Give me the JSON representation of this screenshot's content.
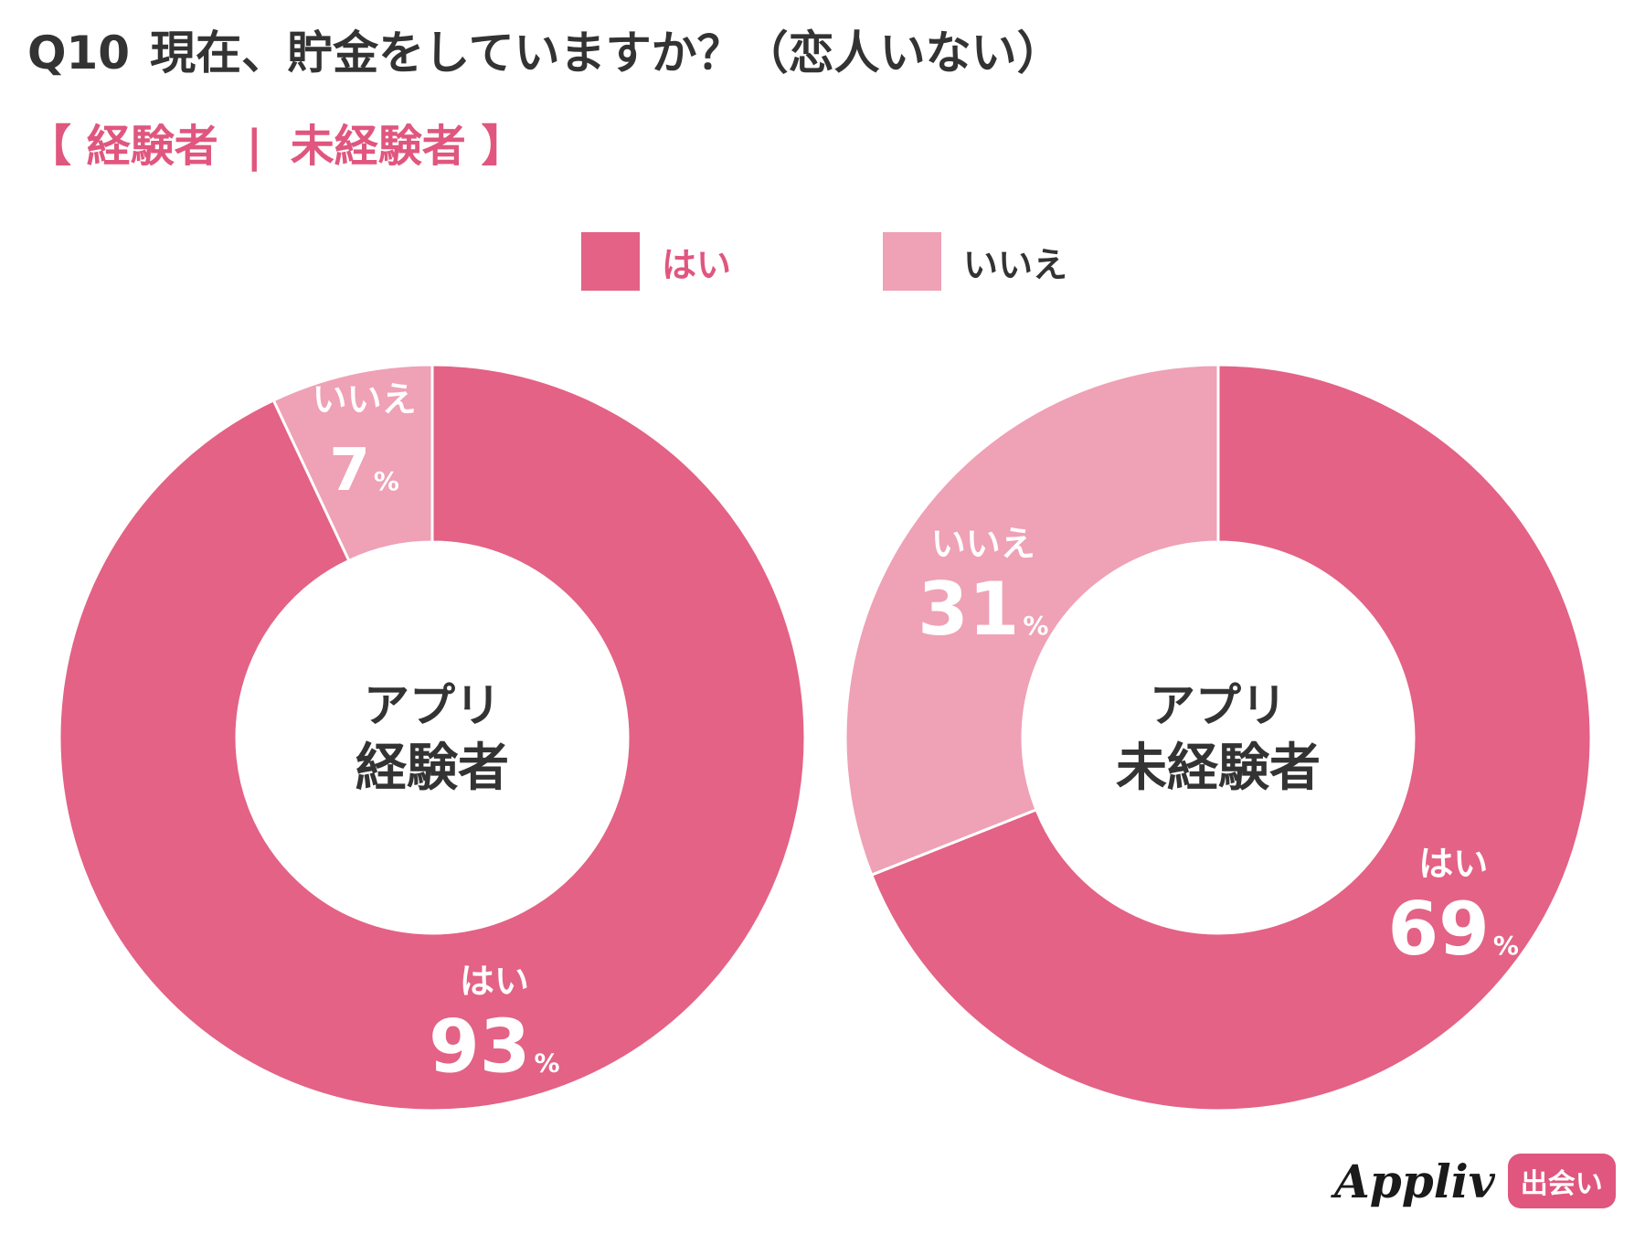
{
  "header": {
    "qnum": "Q10",
    "question": "現在、貯金をしていますか？（恋人いない）",
    "subtitle": {
      "open": "【",
      "group_a": "経験者",
      "sep": "|",
      "group_b": "未経験者",
      "close": "】"
    }
  },
  "legend": {
    "yes_label": "はい",
    "no_label": "いいえ"
  },
  "colors": {
    "yes": "#e36285",
    "no": "#efa1b6",
    "accent": "#e0567e",
    "text": "#333333"
  },
  "chart_data": [
    {
      "type": "pie",
      "center_label_line1": "アプリ",
      "center_label_line2": "経験者",
      "categories": [
        "はい",
        "いいえ"
      ],
      "values": [
        93,
        7
      ],
      "unit": "%"
    },
    {
      "type": "pie",
      "center_label_line1": "アプリ",
      "center_label_line2": "未経験者",
      "categories": [
        "はい",
        "いいえ"
      ],
      "values": [
        69,
        31
      ],
      "unit": "%"
    }
  ],
  "brand": {
    "name": "Appliv",
    "tag": "出会い"
  }
}
